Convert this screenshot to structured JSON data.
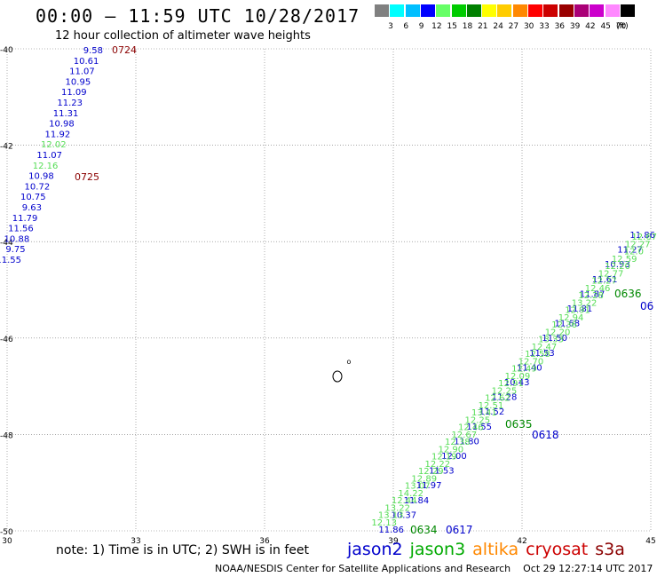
{
  "header": {
    "title": "00:00 – 11:59 UTC 10/28/2017",
    "subtitle": "12 hour collection of altimeter wave heights"
  },
  "legend": {
    "unit": "(ft)",
    "items": [
      {
        "color": "#808080",
        "label": "3"
      },
      {
        "color": "#00ffff",
        "label": "6"
      },
      {
        "color": "#00bfff",
        "label": "9"
      },
      {
        "color": "#0000ff",
        "label": "12"
      },
      {
        "color": "#66ff66",
        "label": "15"
      },
      {
        "color": "#00cc00",
        "label": "18"
      },
      {
        "color": "#008000",
        "label": "21"
      },
      {
        "color": "#ffff00",
        "label": "24"
      },
      {
        "color": "#ffcc00",
        "label": "27"
      },
      {
        "color": "#ff8800",
        "label": "30"
      },
      {
        "color": "#ff0000",
        "label": "33"
      },
      {
        "color": "#cc0000",
        "label": "36"
      },
      {
        "color": "#990000",
        "label": "39"
      },
      {
        "color": "#aa0077",
        "label": "42"
      },
      {
        "color": "#cc00cc",
        "label": "45"
      },
      {
        "color": "#ff88ff",
        "label": "70"
      },
      {
        "color": "#000000",
        "label": ""
      }
    ]
  },
  "map": {
    "lon_ticks": [
      "30",
      "33",
      "36",
      "39",
      "42",
      "45"
    ],
    "lat_ticks": [
      "-40",
      "-42",
      "-44",
      "-46",
      "-48",
      "-50"
    ],
    "island_label": "o"
  },
  "colors": {
    "jason2": "#0000cc",
    "jason3": "#008800",
    "jason3_light": "#55dd55",
    "altika": "#ff8800",
    "cryosat": "#cc0000",
    "s3a": "#8b0000"
  },
  "tracks": {
    "west": {
      "sat": "s3a",
      "start_time": "0724",
      "mid_time": "0725",
      "points": [
        {
          "v": "9.58",
          "c": "jason2"
        },
        {
          "v": "10.61",
          "c": "jason2"
        },
        {
          "v": "11.07",
          "c": "jason2"
        },
        {
          "v": "10.95",
          "c": "jason2"
        },
        {
          "v": "11.09",
          "c": "jason2"
        },
        {
          "v": "11.23",
          "c": "jason2"
        },
        {
          "v": "11.31",
          "c": "jason2"
        },
        {
          "v": "10.98",
          "c": "jason2"
        },
        {
          "v": "11.92",
          "c": "jason2"
        },
        {
          "v": "12.02",
          "c": "jason3_light"
        },
        {
          "v": "11.07",
          "c": "jason2"
        },
        {
          "v": "12.16",
          "c": "jason3_light"
        },
        {
          "v": "10.98",
          "c": "jason2"
        },
        {
          "v": "10.72",
          "c": "jason2"
        },
        {
          "v": "10.75",
          "c": "jason2"
        },
        {
          "v": "9.63",
          "c": "jason2"
        },
        {
          "v": "11.79",
          "c": "jason2"
        },
        {
          "v": "11.56",
          "c": "jason2"
        },
        {
          "v": "10.88",
          "c": "jason2"
        },
        {
          "v": "9.75",
          "c": "jason2"
        },
        {
          "v": "11.55",
          "c": "jason2"
        }
      ]
    },
    "jason2_east": {
      "times": [
        "0617",
        "0618",
        "06"
      ],
      "points": [
        "11.86",
        "11.27",
        "10.93",
        "11.61",
        "11.87",
        "11.81",
        "11.68",
        "11.50",
        "11.53",
        "11.40",
        "10.43",
        "11.28",
        "11.52",
        "11.55",
        "11.80",
        "12.00",
        "11.53",
        "11.97",
        "11.84",
        "10.37",
        "11.86"
      ]
    },
    "jason3_east": {
      "times": [
        "0634",
        "0635",
        "0636"
      ],
      "points": [
        "12.67",
        "12.27",
        "12.0",
        "12.59",
        "12.20",
        "12.77",
        "12.27",
        "12.46",
        "12.28",
        "13.22",
        "12.91",
        "12.94",
        "12.36",
        "12.20",
        "13.33",
        "12.47",
        "12.58",
        "12.70",
        "12.49",
        "12.09",
        "12.91",
        "12.25",
        "12.62",
        "12.51",
        "13.41",
        "12.25",
        "12.46",
        "12.67",
        "12.38",
        "12.90",
        "12.19",
        "12.22",
        "12.29",
        "12.89",
        "13.07",
        "14.22",
        "12.44",
        "13.22",
        "13.13",
        "12.13"
      ]
    }
  },
  "note": "note: 1) Time is in UTC; 2) SWH is in feet",
  "satellites": [
    {
      "name": "jason2",
      "color": "#0000cc"
    },
    {
      "name": "jason3",
      "color": "#00aa00"
    },
    {
      "name": "altika",
      "color": "#ff8800"
    },
    {
      "name": "cryosat",
      "color": "#cc0000"
    },
    {
      "name": "s3a",
      "color": "#8b0000"
    }
  ],
  "footer": {
    "credit": "NOAA/NESDIS Center for Satellite Applications and Research",
    "timestamp": "Oct 29 12:27:14 UTC 2017"
  }
}
